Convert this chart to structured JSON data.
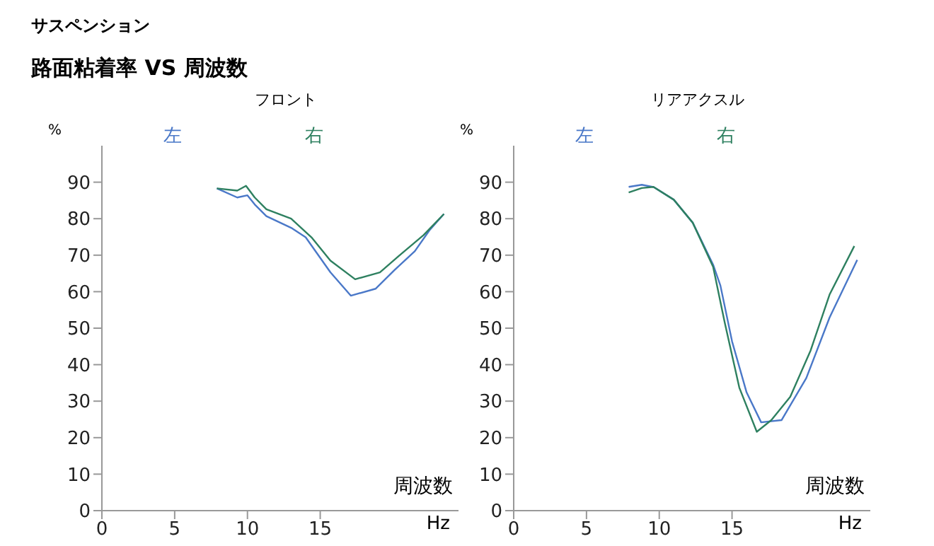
{
  "chart_data": [
    {
      "type": "other",
      "title": "サスペンション",
      "subtitle": "路面粘着率 VS 周波数"
    },
    {
      "type": "line",
      "title": "フロント",
      "xlabel": "周波数",
      "ylabel": "%",
      "annotations": [
        "Hz"
      ],
      "legend": "top",
      "xlim": [
        0,
        24.5
      ],
      "xticks": [
        0,
        5,
        10,
        15
      ],
      "ylim": [
        0,
        100
      ],
      "yticks": [
        0,
        10,
        20,
        30,
        40,
        50,
        60,
        70,
        80,
        90
      ],
      "series": [
        {
          "name": "左",
          "color": "#4a78c8",
          "x": [
            7.9,
            9.3,
            10.0,
            10.5,
            11.3,
            13.0,
            14.0,
            15.7,
            17.1,
            18.8,
            20.1,
            21.5,
            22.5,
            23.5
          ],
          "values": [
            88.3,
            85.8,
            86.4,
            83.9,
            80.7,
            77.5,
            74.9,
            65.3,
            58.9,
            60.8,
            65.9,
            71.1,
            76.8,
            81.3
          ]
        },
        {
          "name": "右",
          "color": "#2e8060",
          "x": [
            7.9,
            9.3,
            9.9,
            10.5,
            11.3,
            13.0,
            14.4,
            15.7,
            17.4,
            19.1,
            20.4,
            22.1,
            23.5
          ],
          "values": [
            88.3,
            87.7,
            89,
            85.8,
            82.6,
            80,
            74.9,
            68.5,
            63.4,
            65.3,
            69.8,
            75.5,
            81.3
          ]
        }
      ]
    },
    {
      "type": "line",
      "title": "リアアクスル",
      "xlabel": "周波数",
      "ylabel": "%",
      "annotations": [
        "Hz"
      ],
      "legend": "top",
      "xlim": [
        0,
        24.5
      ],
      "xticks": [
        0,
        5,
        10,
        15
      ],
      "ylim": [
        0,
        100
      ],
      "yticks": [
        0,
        10,
        20,
        30,
        40,
        50,
        60,
        70,
        80,
        90
      ],
      "series": [
        {
          "name": "左",
          "color": "#4a78c8",
          "x": [
            7.9,
            8.8,
            9.6,
            11.0,
            12.3,
            13.7,
            14.2,
            15.0,
            16.0,
            17.0,
            18.4,
            20.1,
            21.7,
            23.6
          ],
          "values": [
            88.7,
            89.3,
            88.7,
            85.2,
            78.9,
            67.4,
            61.7,
            46.4,
            32.4,
            24.2,
            24.8,
            36.3,
            52.9,
            68.7
          ]
        },
        {
          "name": "右",
          "color": "#2e8060",
          "x": [
            7.9,
            8.8,
            9.6,
            11.0,
            12.3,
            13.7,
            14.5,
            15.5,
            16.7,
            17.7,
            19.0,
            20.4,
            21.7,
            23.4
          ],
          "values": [
            87.2,
            88.4,
            88.7,
            85.2,
            78.9,
            66.8,
            51.5,
            33.7,
            21.6,
            24.8,
            31.2,
            43.9,
            59.2,
            72.5
          ]
        }
      ]
    }
  ]
}
